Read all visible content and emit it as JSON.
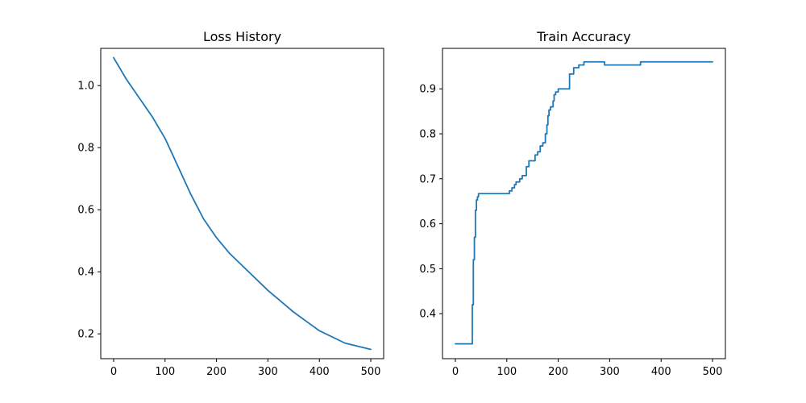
{
  "chart_data": [
    {
      "type": "line",
      "title": "Loss History",
      "xlabel": "",
      "ylabel": "",
      "xlim": [
        -25,
        525
      ],
      "ylim": [
        0.12,
        1.12
      ],
      "xticks": [
        0,
        100,
        200,
        300,
        400,
        500
      ],
      "xtick_labels": [
        "0",
        "100",
        "200",
        "300",
        "400",
        "500"
      ],
      "yticks": [
        0.2,
        0.4,
        0.6,
        0.8,
        1.0
      ],
      "ytick_labels": [
        "0.2",
        "0.4",
        "0.6",
        "0.8",
        "1.0"
      ],
      "grid": false,
      "series": [
        {
          "color": "#1f77b4",
          "x": [
            0,
            25,
            50,
            75,
            100,
            125,
            150,
            175,
            200,
            225,
            250,
            300,
            350,
            400,
            450,
            500
          ],
          "y": [
            1.09,
            1.02,
            0.96,
            0.9,
            0.83,
            0.74,
            0.65,
            0.57,
            0.51,
            0.46,
            0.42,
            0.34,
            0.27,
            0.21,
            0.17,
            0.15
          ]
        }
      ]
    },
    {
      "type": "line",
      "title": "Train Accuracy",
      "xlabel": "",
      "ylabel": "",
      "xlim": [
        -25,
        525
      ],
      "ylim": [
        0.3,
        0.99
      ],
      "xticks": [
        0,
        100,
        200,
        300,
        400,
        500
      ],
      "xtick_labels": [
        "0",
        "100",
        "200",
        "300",
        "400",
        "500"
      ],
      "yticks": [
        0.4,
        0.5,
        0.6,
        0.7,
        0.8,
        0.9
      ],
      "ytick_labels": [
        "0.4",
        "0.5",
        "0.6",
        "0.7",
        "0.8",
        "0.9"
      ],
      "grid": false,
      "series": [
        {
          "color": "#1f77b4",
          "drawstyle": "steps-post",
          "x": [
            0,
            30,
            33,
            35,
            37,
            39,
            41,
            43,
            45,
            105,
            110,
            115,
            118,
            120,
            125,
            130,
            138,
            143,
            150,
            155,
            160,
            165,
            170,
            175,
            178,
            180,
            182,
            185,
            190,
            192,
            195,
            200,
            210,
            222,
            225,
            230,
            240,
            250,
            280,
            290,
            358,
            360,
            400,
            500
          ],
          "y": [
            0.333,
            0.333,
            0.42,
            0.52,
            0.57,
            0.63,
            0.653,
            0.66,
            0.667,
            0.673,
            0.68,
            0.687,
            0.693,
            0.693,
            0.7,
            0.707,
            0.727,
            0.74,
            0.74,
            0.753,
            0.76,
            0.773,
            0.78,
            0.8,
            0.82,
            0.84,
            0.853,
            0.86,
            0.873,
            0.887,
            0.893,
            0.9,
            0.9,
            0.933,
            0.933,
            0.947,
            0.953,
            0.96,
            0.96,
            0.953,
            0.953,
            0.96,
            0.96,
            0.96
          ]
        }
      ]
    }
  ]
}
